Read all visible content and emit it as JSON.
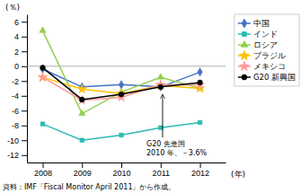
{
  "chart_data": {
    "type": "line",
    "x": [
      2008,
      2009,
      2010,
      2011,
      2012
    ],
    "series": [
      {
        "name": "中国",
        "color": "#4472C4",
        "marker": "diamond",
        "values": [
          -0.4,
          -2.8,
          -2.5,
          -2.8,
          -0.8
        ]
      },
      {
        "name": "インド",
        "color": "#2BBBB0",
        "marker": "square",
        "values": [
          -7.8,
          -10.0,
          -9.3,
          -8.3,
          -7.6
        ]
      },
      {
        "name": "ロシア",
        "color": "#92D050",
        "marker": "triangle",
        "values": [
          4.8,
          -6.4,
          -3.5,
          -1.5,
          -3.0
        ]
      },
      {
        "name": "ブラジル",
        "color": "#FFC000",
        "marker": "star",
        "values": [
          -1.5,
          -3.1,
          -3.7,
          -2.6,
          -3.0
        ]
      },
      {
        "name": "メキシコ",
        "color": "#FF9999",
        "marker": "star",
        "values": [
          -1.5,
          -4.6,
          -4.2,
          -2.5,
          -2.5
        ]
      },
      {
        "name": "G20 新興国",
        "color": "#000000",
        "marker": "circle",
        "values": [
          -0.2,
          -4.5,
          -3.8,
          -2.8,
          -2.2
        ]
      }
    ],
    "x_label": "(年)",
    "y_label": "(％)",
    "xlim": [
      2007.6,
      2012.65
    ],
    "xticks": [
      2008,
      2009,
      2010,
      2011,
      2012
    ],
    "ylim": [
      -13,
      7
    ],
    "yticks": [
      -12,
      -10,
      -8,
      -6,
      -4,
      -2,
      0,
      2,
      4,
      6
    ],
    "annotations": [
      {
        "text": "G20 先進国\n2010 年、－3.6%",
        "x": 2011.05,
        "y": -3.6
      }
    ],
    "footnote": "資料：IMF「Fiscal Monitor April 2011」から作成。",
    "legend": "upper right",
    "grid": false
  }
}
